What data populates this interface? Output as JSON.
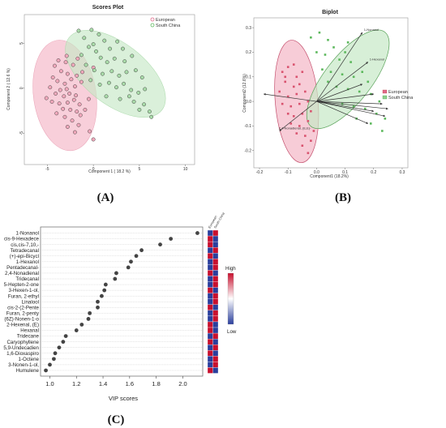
{
  "panel_labels": {
    "a": "(A)",
    "b": "(B)",
    "c": "(C)"
  },
  "chart_data": [
    {
      "type": "scatter",
      "title": "Scores Plot",
      "xlabel": "Component 1 ( 18.2 %)",
      "ylabel": "Component 2 ( 12.6 %)",
      "xlim": [
        -7.5,
        11
      ],
      "ylim": [
        -8.5,
        8.2
      ],
      "xticks": [
        -5,
        0,
        5,
        10
      ],
      "yticks": [
        -5,
        0,
        5
      ],
      "legend": [
        "European",
        "South China"
      ],
      "legend_position": "top-right",
      "colors": {
        "European": "#e06a8a",
        "South China": "#5cb85c"
      },
      "series": [
        {
          "name": "European",
          "points": [
            [
              -3.8,
              3.1
            ],
            [
              -4.2,
              2.5
            ],
            [
              -3.0,
              2.9
            ],
            [
              -2.2,
              2.6
            ],
            [
              -1.7,
              3.3
            ],
            [
              -3.5,
              1.9
            ],
            [
              -2.8,
              1.6
            ],
            [
              -4.4,
              1.2
            ],
            [
              -3.9,
              0.8
            ],
            [
              -2.4,
              1.0
            ],
            [
              -1.8,
              1.4
            ],
            [
              -3.1,
              0.5
            ],
            [
              -4.7,
              0.1
            ],
            [
              -3.6,
              -0.2
            ],
            [
              -2.9,
              -0.1
            ],
            [
              -2.0,
              0.2
            ],
            [
              -1.3,
              0.7
            ],
            [
              -4.1,
              -0.6
            ],
            [
              -3.2,
              -0.9
            ],
            [
              -2.6,
              -0.6
            ],
            [
              -1.9,
              -0.8
            ],
            [
              -5.1,
              -1.1
            ],
            [
              -4.5,
              -1.5
            ],
            [
              -3.7,
              -1.7
            ],
            [
              -2.8,
              -1.6
            ],
            [
              -2.1,
              -1.3
            ],
            [
              -1.5,
              -1.8
            ],
            [
              -3.3,
              -2.3
            ],
            [
              -2.5,
              -2.4
            ],
            [
              -1.8,
              -2.6
            ],
            [
              -4.0,
              -2.8
            ],
            [
              -3.1,
              -3.2
            ],
            [
              -2.3,
              -3.6
            ],
            [
              -1.4,
              -3.0
            ],
            [
              -0.9,
              -2.4
            ],
            [
              -2.8,
              -4.3
            ],
            [
              -1.6,
              -4.1
            ],
            [
              -2.0,
              -4.9
            ],
            [
              -0.4,
              -4.8
            ],
            [
              0.0,
              -5.7
            ],
            [
              -1.2,
              1.8
            ],
            [
              -2.9,
              3.6
            ],
            [
              -0.5,
              -1.2
            ],
            [
              0.0,
              2.3
            ]
          ]
        },
        {
          "name": "South China",
          "points": [
            [
              -1.6,
              6.4
            ],
            [
              -1.0,
              5.6
            ],
            [
              -0.2,
              6.5
            ],
            [
              0.6,
              6.0
            ],
            [
              1.2,
              5.3
            ],
            [
              -0.5,
              4.6
            ],
            [
              0.3,
              4.1
            ],
            [
              1.8,
              4.4
            ],
            [
              2.6,
              5.2
            ],
            [
              3.2,
              4.4
            ],
            [
              -1.3,
              3.7
            ],
            [
              0.8,
              3.4
            ],
            [
              1.5,
              2.9
            ],
            [
              2.3,
              3.3
            ],
            [
              3.4,
              3.0
            ],
            [
              4.2,
              3.6
            ],
            [
              -0.8,
              2.6
            ],
            [
              0.1,
              2.0
            ],
            [
              1.0,
              1.6
            ],
            [
              2.0,
              1.9
            ],
            [
              2.8,
              1.4
            ],
            [
              3.6,
              1.8
            ],
            [
              4.6,
              2.0
            ],
            [
              5.3,
              1.2
            ],
            [
              -0.3,
              0.9
            ],
            [
              0.7,
              0.4
            ],
            [
              1.7,
              0.6
            ],
            [
              2.5,
              0.1
            ],
            [
              3.3,
              0.5
            ],
            [
              4.1,
              -0.2
            ],
            [
              4.9,
              -0.5
            ],
            [
              5.6,
              -0.1
            ],
            [
              1.4,
              -0.9
            ],
            [
              2.9,
              -1.2
            ],
            [
              4.4,
              -1.5
            ],
            [
              5.5,
              -1.8
            ],
            [
              6.1,
              -2.6
            ],
            [
              5.0,
              -2.4
            ],
            [
              6.3,
              -3.2
            ],
            [
              3.9,
              -0.9
            ],
            [
              0.0,
              4.9
            ]
          ]
        }
      ]
    },
    {
      "type": "scatter",
      "title": "Biplot",
      "xlabel": "Component1 (18.2%)",
      "ylabel": "Component2 (12.6%)",
      "xlim": [
        -0.22,
        0.32
      ],
      "ylim": [
        -0.27,
        0.34
      ],
      "xticks": [
        -0.2,
        -0.1,
        0.0,
        0.1,
        0.2,
        0.3
      ],
      "yticks": [
        -0.2,
        -0.1,
        0.0,
        0.1,
        0.2,
        0.3
      ],
      "legend": [
        "European",
        "South China"
      ],
      "legend_position": "right",
      "colors": {
        "European": "#e06a8a",
        "South China": "#5cb85c"
      },
      "loadings": [
        {
          "label": "1-Nonanol",
          "x": 0.16,
          "y": 0.28
        },
        {
          "label": "1-Hexanol",
          "x": 0.18,
          "y": 0.16
        },
        {
          "label": "",
          "x": -0.185,
          "y": 0.03
        },
        {
          "label": "2,4-Nonadienal, (E,E)-",
          "x": -0.13,
          "y": -0.12
        },
        {
          "label": "",
          "x": 0.16,
          "y": 0.07
        },
        {
          "label": "",
          "x": 0.2,
          "y": 0.03
        },
        {
          "label": "",
          "x": 0.23,
          "y": -0.01
        },
        {
          "label": "",
          "x": 0.2,
          "y": -0.04
        },
        {
          "label": "",
          "x": 0.24,
          "y": -0.06
        },
        {
          "label": "",
          "x": 0.18,
          "y": -0.09
        },
        {
          "label": "",
          "x": 0.25,
          "y": -0.03
        }
      ],
      "series": [
        {
          "name": "European",
          "points": [
            [
              -0.12,
              0.12
            ],
            [
              -0.1,
              0.14
            ],
            [
              -0.07,
              0.1
            ],
            [
              -0.05,
              0.12
            ],
            [
              -0.11,
              0.08
            ],
            [
              -0.08,
              0.06
            ],
            [
              -0.06,
              0.07
            ],
            [
              -0.13,
              0.04
            ],
            [
              -0.1,
              0.02
            ],
            [
              -0.07,
              0.03
            ],
            [
              -0.04,
              0.04
            ],
            [
              -0.12,
              -0.01
            ],
            [
              -0.09,
              -0.02
            ],
            [
              -0.06,
              -0.01
            ],
            [
              -0.03,
              0.0
            ],
            [
              -0.1,
              -0.05
            ],
            [
              -0.08,
              -0.06
            ],
            [
              -0.05,
              -0.05
            ],
            [
              -0.02,
              -0.04
            ],
            [
              -0.09,
              -0.09
            ],
            [
              -0.06,
              -0.1
            ],
            [
              -0.03,
              -0.08
            ],
            [
              -0.07,
              -0.13
            ],
            [
              -0.04,
              -0.14
            ],
            [
              -0.05,
              -0.18
            ],
            [
              -0.02,
              -0.16
            ],
            [
              -0.03,
              -0.21
            ],
            [
              -0.01,
              -0.12
            ],
            [
              -0.11,
              0.1
            ],
            [
              -0.08,
              0.15
            ]
          ]
        },
        {
          "name": "South China",
          "points": [
            [
              -0.02,
              0.26
            ],
            [
              0.01,
              0.28
            ],
            [
              0.04,
              0.25
            ],
            [
              0.06,
              0.22
            ],
            [
              0.0,
              0.2
            ],
            [
              0.03,
              0.19
            ],
            [
              0.08,
              0.17
            ],
            [
              0.1,
              0.2
            ],
            [
              0.12,
              0.16
            ],
            [
              0.02,
              0.13
            ],
            [
              0.05,
              0.12
            ],
            [
              0.09,
              0.11
            ],
            [
              0.13,
              0.1
            ],
            [
              0.16,
              0.12
            ],
            [
              0.18,
              0.08
            ],
            [
              0.07,
              0.06
            ],
            [
              0.11,
              0.05
            ],
            [
              0.15,
              0.04
            ],
            [
              0.19,
              0.03
            ],
            [
              0.22,
              0.0
            ],
            [
              0.09,
              -0.01
            ],
            [
              0.13,
              -0.02
            ],
            [
              0.17,
              -0.03
            ],
            [
              0.21,
              -0.05
            ],
            [
              0.24,
              -0.07
            ],
            [
              0.14,
              -0.07
            ],
            [
              0.19,
              -0.09
            ],
            [
              0.23,
              -0.12
            ],
            [
              0.04,
              0.08
            ],
            [
              0.11,
              0.24
            ]
          ]
        }
      ]
    },
    {
      "type": "scatter",
      "xlabel": "VIP scores",
      "xlim": [
        0.93,
        2.15
      ],
      "xticks": [
        1.0,
        1.2,
        1.4,
        1.6,
        1.8,
        2.0
      ],
      "heatmap_columns": [
        "European",
        "South China"
      ],
      "heatmap_legend": {
        "high": "High",
        "low": "Low"
      },
      "heatmap_colors": {
        "high": "#c8102e",
        "low": "#2a3f9d"
      },
      "features": [
        {
          "label": "1-Nonanol",
          "vip": 2.11,
          "european": "low",
          "south_china": "high"
        },
        {
          "label": "cis-9-Hexadece",
          "vip": 1.91,
          "european": "high",
          "south_china": "low"
        },
        {
          "label": "cis,cis-7,10,-",
          "vip": 1.83,
          "european": "high",
          "south_china": "low"
        },
        {
          "label": "Tetradecanal",
          "vip": 1.69,
          "european": "low",
          "south_china": "high"
        },
        {
          "label": "(+)-epi-Bicycl",
          "vip": 1.65,
          "european": "high",
          "south_china": "low"
        },
        {
          "label": "1-Hexanol",
          "vip": 1.61,
          "european": "low",
          "south_china": "high"
        },
        {
          "label": "Pentadecanal-",
          "vip": 1.59,
          "european": "low",
          "south_china": "high"
        },
        {
          "label": "2,4-Nonadienal",
          "vip": 1.5,
          "european": "high",
          "south_china": "low"
        },
        {
          "label": "Tridecanal",
          "vip": 1.49,
          "european": "low",
          "south_china": "high"
        },
        {
          "label": "5-Hepten-2-one",
          "vip": 1.42,
          "european": "low",
          "south_china": "high"
        },
        {
          "label": "3-Hexen-1-ol,",
          "vip": 1.41,
          "european": "high",
          "south_china": "low"
        },
        {
          "label": "Furan, 2-ethyl",
          "vip": 1.39,
          "european": "low",
          "south_china": "high"
        },
        {
          "label": "Linalool",
          "vip": 1.36,
          "european": "low",
          "south_china": "high"
        },
        {
          "label": "cis-2-(2-Pente",
          "vip": 1.36,
          "european": "high",
          "south_china": "low"
        },
        {
          "label": "Furan, 2-penty",
          "vip": 1.3,
          "european": "low",
          "south_china": "high"
        },
        {
          "label": "(6Z)-Nonen-1-o",
          "vip": 1.29,
          "european": "low",
          "south_china": "high"
        },
        {
          "label": "2-Hexenal, (E)",
          "vip": 1.24,
          "european": "high",
          "south_china": "low"
        },
        {
          "label": "Hexanal",
          "vip": 1.2,
          "european": "high",
          "south_china": "low"
        },
        {
          "label": "Tridecane",
          "vip": 1.12,
          "european": "low",
          "south_china": "high"
        },
        {
          "label": "Caryophyllene",
          "vip": 1.1,
          "european": "high",
          "south_china": "low"
        },
        {
          "label": "5,9-Undecadien",
          "vip": 1.07,
          "european": "low",
          "south_china": "high"
        },
        {
          "label": "1,6-Dioxaspiro",
          "vip": 1.04,
          "european": "high",
          "south_china": "low"
        },
        {
          "label": "1-Octene",
          "vip": 1.03,
          "european": "low",
          "south_china": "high"
        },
        {
          "label": "3-Nonen-1-ol,",
          "vip": 1.0,
          "european": "low",
          "south_china": "high"
        },
        {
          "label": "Humulene",
          "vip": 0.97,
          "european": "high",
          "south_china": "low"
        }
      ]
    }
  ]
}
